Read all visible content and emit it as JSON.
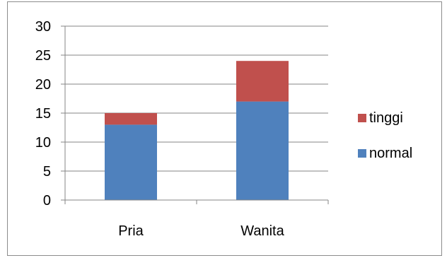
{
  "chart_data": {
    "type": "bar",
    "stacked": true,
    "categories": [
      "Pria",
      "Wanita"
    ],
    "series": [
      {
        "name": "normal",
        "values": [
          13,
          17
        ],
        "color": "#4f81bd"
      },
      {
        "name": "tinggi",
        "values": [
          2,
          7
        ],
        "color": "#c0504d"
      }
    ],
    "ylim": [
      0,
      30
    ],
    "yticks": [
      0,
      5,
      10,
      15,
      20,
      25,
      30
    ],
    "grid": true,
    "legend_position": "right",
    "legend_order": [
      "tinggi",
      "normal"
    ]
  }
}
